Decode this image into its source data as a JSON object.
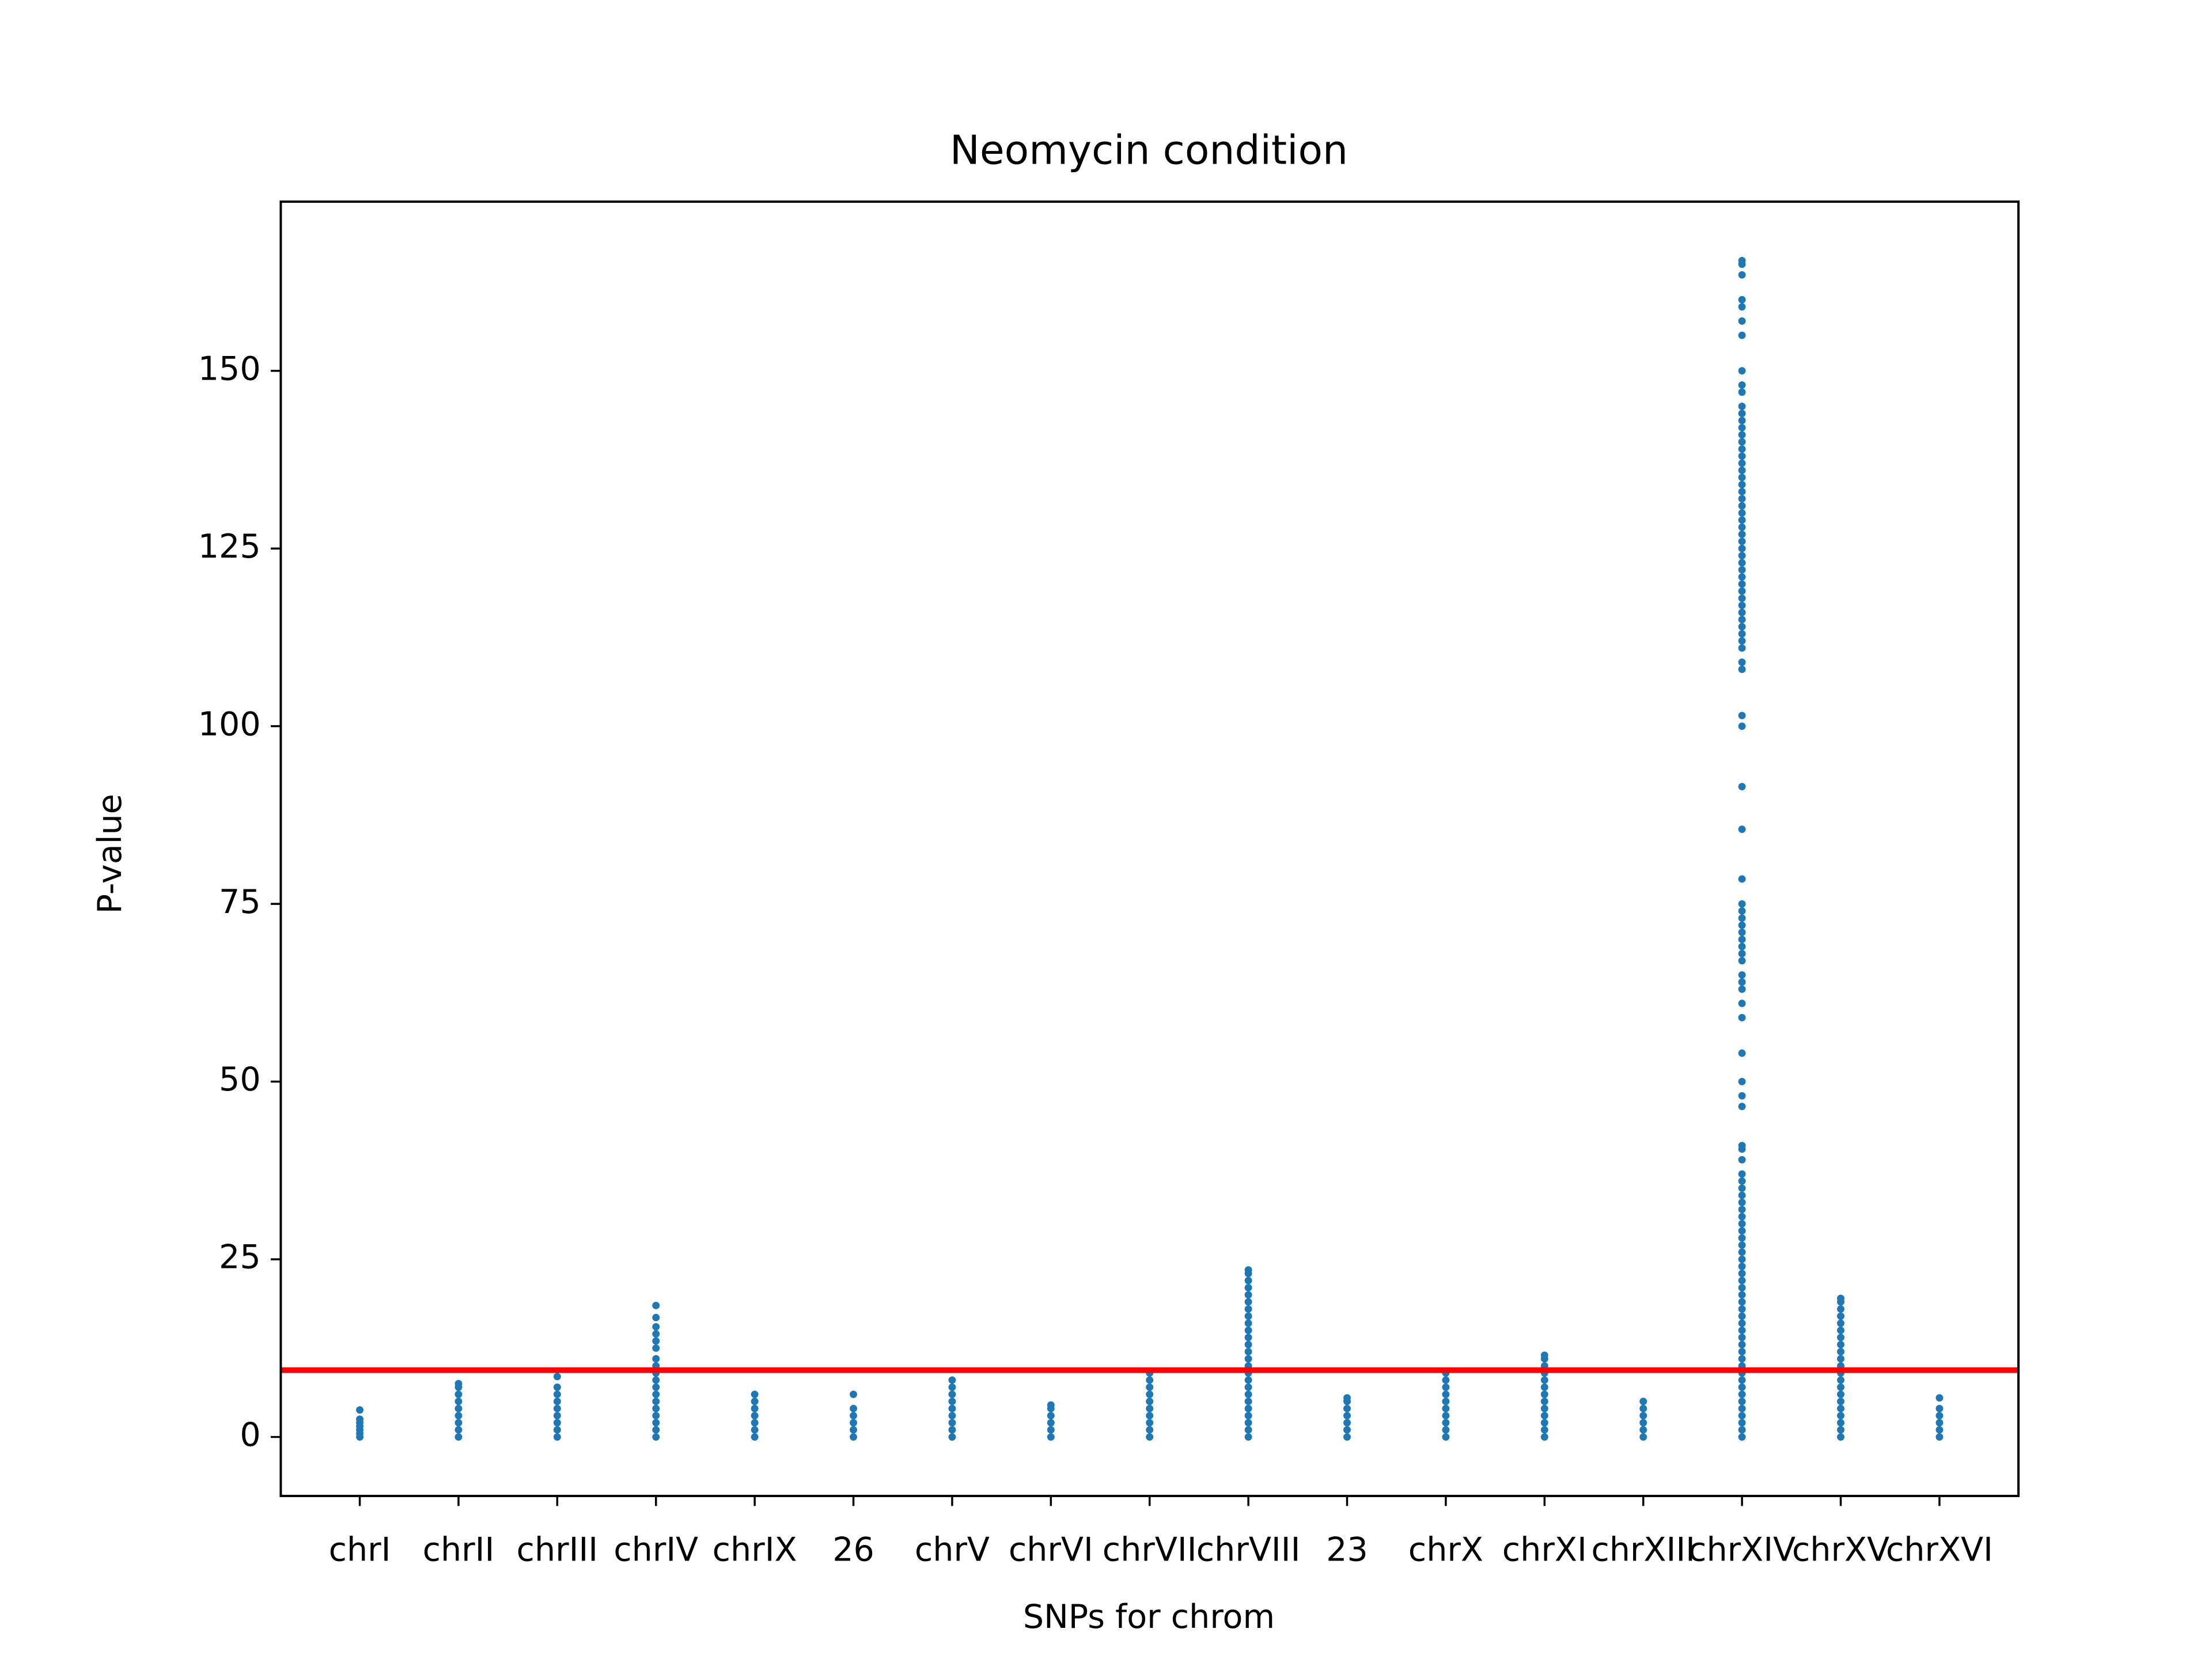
{
  "chart_data": {
    "type": "strip",
    "title": "Neomycin condition",
    "x_label": "SNPs for chrom",
    "y_label": "P-value",
    "categories": [
      "chrI",
      "chrII",
      "chrIII",
      "chrIV",
      "chrIX",
      "26",
      "chrV",
      "chrVI",
      "chrVII",
      "chrVIII",
      "23",
      "chrX",
      "chrXI",
      "chrXIII",
      "chrXIV",
      "chrXV",
      "chrXVI"
    ],
    "color": "#1f77b4",
    "values": [
      [
        0,
        0.5,
        1,
        1.5,
        2,
        2.5,
        3.8
      ],
      [
        0,
        1,
        2,
        3,
        4,
        5,
        6,
        7,
        7.5
      ],
      [
        0,
        1,
        2,
        3,
        4,
        5,
        6,
        7,
        8.5
      ],
      [
        0,
        1,
        2,
        3,
        4,
        5,
        6,
        7,
        8,
        9,
        10,
        11,
        12.5,
        13.5,
        14.5,
        15.5,
        16.8,
        18.5
      ],
      [
        0,
        1,
        2,
        3,
        4,
        5,
        6
      ],
      [
        0,
        1,
        2,
        3,
        4,
        6
      ],
      [
        0,
        1,
        2,
        3,
        4,
        5,
        6,
        7,
        8
      ],
      [
        0,
        1,
        2,
        3,
        4,
        4.5
      ],
      [
        0,
        1,
        2,
        3,
        4,
        5,
        6,
        7,
        8,
        9
      ],
      [
        0,
        1,
        2,
        3,
        4,
        5,
        6,
        7,
        8,
        9,
        10,
        11,
        12,
        13,
        14,
        15,
        16,
        17,
        18,
        19,
        20,
        21,
        22,
        23,
        23.5
      ],
      [
        0,
        1,
        2,
        3,
        4,
        5,
        5.5
      ],
      [
        0,
        1,
        2,
        3,
        4,
        5,
        6,
        7,
        8,
        9
      ],
      [
        0,
        1,
        2,
        3,
        4,
        5,
        6,
        7,
        8,
        9,
        10,
        11,
        11.5
      ],
      [
        0,
        1,
        2,
        3,
        4,
        5
      ],
      [
        0,
        1,
        2,
        3,
        4,
        5,
        6,
        7,
        8,
        9,
        10,
        11,
        12,
        13,
        14,
        15,
        16,
        17,
        18,
        19,
        20,
        21,
        22,
        23,
        24,
        25,
        26,
        27,
        28,
        29,
        30,
        31,
        32,
        33,
        34,
        35,
        36,
        37,
        39,
        40.5,
        41,
        46.5,
        48,
        50,
        54,
        59,
        61,
        63,
        64,
        65,
        67,
        68,
        69,
        70,
        71,
        72,
        73,
        74,
        75,
        78.5,
        85.5,
        91.5,
        100,
        101.5,
        108,
        109,
        111,
        112,
        113,
        114,
        115,
        116,
        117,
        118,
        119,
        120,
        121,
        122,
        123,
        124,
        125,
        126,
        127,
        128,
        129,
        130,
        131,
        132,
        133,
        134,
        135,
        136,
        137,
        138,
        139,
        140,
        141,
        142,
        143,
        144,
        145,
        147,
        148,
        150,
        155,
        157,
        159,
        160,
        163.5,
        165,
        165.5
      ],
      [
        0,
        1,
        2,
        3,
        4,
        5,
        6,
        7,
        8,
        9,
        10,
        11,
        12,
        13,
        14,
        15,
        16,
        17,
        18,
        19,
        19.5
      ],
      [
        0,
        1,
        2,
        3,
        4,
        5.5
      ]
    ],
    "threshold": {
      "value": 9.4,
      "color": "#ff0000"
    },
    "xlim": [
      -0.8,
      16.8
    ],
    "ylim": [
      -8.3,
      173.8
    ],
    "yticks": [
      0,
      25,
      50,
      75,
      100,
      125,
      150
    ]
  }
}
